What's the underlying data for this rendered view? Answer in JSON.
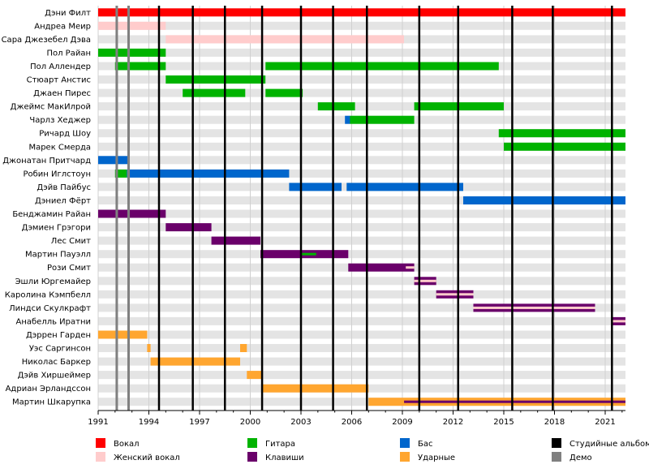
{
  "chart_data": {
    "type": "timeline",
    "xlim": [
      1991,
      2022.2
    ],
    "ticks": [
      1991,
      1994,
      1997,
      2000,
      2003,
      2006,
      2009,
      2012,
      2015,
      2018,
      2021
    ],
    "colors": {
      "vocal": "#ff0000",
      "female_vocal": "#ffcccc",
      "guitar": "#00b300",
      "bass": "#0066cc",
      "keys": "#6a006a",
      "drums": "#ffa630",
      "album": "#000000",
      "demo": "#808080"
    },
    "members": [
      {
        "name": "Дэни Филт",
        "bars": [
          {
            "role": "vocal",
            "start": 1991,
            "end": 2022.2
          }
        ]
      },
      {
        "name": "Андреа Меир",
        "bars": [
          {
            "role": "female_vocal",
            "start": 1991,
            "end": 1995
          }
        ]
      },
      {
        "name": "Сара Джезебел Дэва",
        "bars": [
          {
            "role": "female_vocal",
            "start": 1995,
            "end": 2009.1
          }
        ]
      },
      {
        "name": "Пол Райан",
        "bars": [
          {
            "role": "guitar",
            "start": 1991,
            "end": 1995
          }
        ]
      },
      {
        "name": "Пол Аллендер",
        "bars": [
          {
            "role": "guitar",
            "start": 1992,
            "end": 1995
          },
          {
            "role": "guitar",
            "start": 2000.9,
            "end": 2014.7
          }
        ]
      },
      {
        "name": "Стюарт Анстис",
        "bars": [
          {
            "role": "guitar",
            "start": 1995,
            "end": 2000.9
          }
        ]
      },
      {
        "name": "Джаен Пирес",
        "bars": [
          {
            "role": "guitar",
            "start": 1996,
            "end": 1999.7
          },
          {
            "role": "guitar",
            "start": 2000.9,
            "end": 2003.1
          }
        ]
      },
      {
        "name": "Джеймс МакИлрой",
        "bars": [
          {
            "role": "guitar",
            "start": 2004,
            "end": 2006.2
          },
          {
            "role": "guitar",
            "start": 2009.7,
            "end": 2015
          }
        ]
      },
      {
        "name": "Чарлз Хеджер",
        "bars": [
          {
            "role": "bass",
            "start": 2005.6,
            "end": 2005.9
          },
          {
            "role": "guitar",
            "start": 2005.9,
            "end": 2009.7
          }
        ]
      },
      {
        "name": "Ричард Шоу",
        "bars": [
          {
            "role": "guitar",
            "start": 2014.7,
            "end": 2022.2
          }
        ]
      },
      {
        "name": "Марек Смерда",
        "bars": [
          {
            "role": "guitar",
            "start": 2015,
            "end": 2022.2
          }
        ]
      },
      {
        "name": "Джонатан Притчард",
        "bars": [
          {
            "role": "bass",
            "start": 1991,
            "end": 1992.8
          }
        ]
      },
      {
        "name": "Робин Иглстоун",
        "bars": [
          {
            "role": "guitar",
            "start": 1992,
            "end": 1992.7
          },
          {
            "role": "bass",
            "start": 1992.7,
            "end": 2002.3
          }
        ]
      },
      {
        "name": "Дэйв Пайбус",
        "bars": [
          {
            "role": "bass",
            "start": 2002.3,
            "end": 2005.4
          },
          {
            "role": "bass",
            "start": 2005.7,
            "end": 2012.6
          }
        ]
      },
      {
        "name": "Дэниел Фёрт",
        "bars": [
          {
            "role": "bass",
            "start": 2012.6,
            "end": 2022.2
          }
        ]
      },
      {
        "name": "Бенджамин Райан",
        "bars": [
          {
            "role": "keys",
            "start": 1991,
            "end": 1995
          }
        ]
      },
      {
        "name": "Дэмиен Грэгори",
        "bars": [
          {
            "role": "keys",
            "start": 1995,
            "end": 1997.7
          }
        ]
      },
      {
        "name": "Лес Смит",
        "bars": [
          {
            "role": "keys",
            "start": 1997.7,
            "end": 2000.6
          }
        ]
      },
      {
        "name": "Мартин Пауэлл",
        "bars": [
          {
            "role": "keys",
            "start": 2000.6,
            "end": 2005.8
          },
          {
            "role": "guitar",
            "start": 2003,
            "end": 2003.9,
            "thin": true
          }
        ]
      },
      {
        "name": "Рози Смит",
        "bars": [
          {
            "role": "keys",
            "start": 2005.8,
            "end": 2009.7
          },
          {
            "role": "female_vocal",
            "start": 2009.2,
            "end": 2009.7,
            "thin": true
          }
        ]
      },
      {
        "name": "Эшли Юргемайер",
        "bars": [
          {
            "role": "keys",
            "start": 2009.7,
            "end": 2011
          },
          {
            "role": "female_vocal",
            "start": 2009.7,
            "end": 2011,
            "thin": true
          }
        ]
      },
      {
        "name": "Каролина Кэмпбелл",
        "bars": [
          {
            "role": "keys",
            "start": 2011,
            "end": 2013.2
          },
          {
            "role": "female_vocal",
            "start": 2011,
            "end": 2013.2,
            "thin": true
          }
        ]
      },
      {
        "name": "Линдси Скулкрафт",
        "bars": [
          {
            "role": "keys",
            "start": 2013.2,
            "end": 2020.4
          },
          {
            "role": "female_vocal",
            "start": 2013.2,
            "end": 2020.4,
            "thin": true
          }
        ]
      },
      {
        "name": "Анабелль Иратни",
        "bars": [
          {
            "role": "keys",
            "start": 2021.4,
            "end": 2022.2
          },
          {
            "role": "female_vocal",
            "start": 2021.4,
            "end": 2022.2,
            "thin": true
          }
        ]
      },
      {
        "name": "Дэррен Гарден",
        "bars": [
          {
            "role": "drums",
            "start": 1991,
            "end": 1993.9
          }
        ]
      },
      {
        "name": "Уэс Саргинсон",
        "bars": [
          {
            "role": "drums",
            "start": 1993.9,
            "end": 1994.1
          },
          {
            "role": "drums",
            "start": 1999.4,
            "end": 1999.8
          }
        ]
      },
      {
        "name": "Николас Баркер",
        "bars": [
          {
            "role": "drums",
            "start": 1994.1,
            "end": 1999.4
          }
        ]
      },
      {
        "name": "Дэйв Хиршеймер",
        "bars": [
          {
            "role": "drums",
            "start": 1999.8,
            "end": 2000.7
          }
        ]
      },
      {
        "name": "Адриан Эрландссон",
        "bars": [
          {
            "role": "drums",
            "start": 2000.7,
            "end": 2007
          }
        ]
      },
      {
        "name": "Мартин Шкарупка",
        "bars": [
          {
            "role": "drums",
            "start": 2007,
            "end": 2022.2
          },
          {
            "role": "keys",
            "start": 2009.1,
            "end": 2022.2,
            "thin": true
          }
        ]
      }
    ],
    "studio_albums": [
      1994.6,
      1996.6,
      1998.5,
      2000.7,
      2003.0,
      2004.9,
      2006.9,
      2010.0,
      2012.3,
      2015.5,
      2017.9,
      2021.4
    ],
    "demos": [
      1992.1,
      1992.8
    ],
    "legend": [
      {
        "key": "vocal",
        "label": "Вокал"
      },
      {
        "key": "female_vocal",
        "label": "Женский вокал"
      },
      {
        "key": "guitar",
        "label": "Гитара"
      },
      {
        "key": "keys",
        "label": "Клавиши"
      },
      {
        "key": "bass",
        "label": "Бас"
      },
      {
        "key": "drums",
        "label": "Ударные"
      },
      {
        "key": "album",
        "label": "Студийные альбомы"
      },
      {
        "key": "demo",
        "label": "Демо"
      }
    ]
  }
}
